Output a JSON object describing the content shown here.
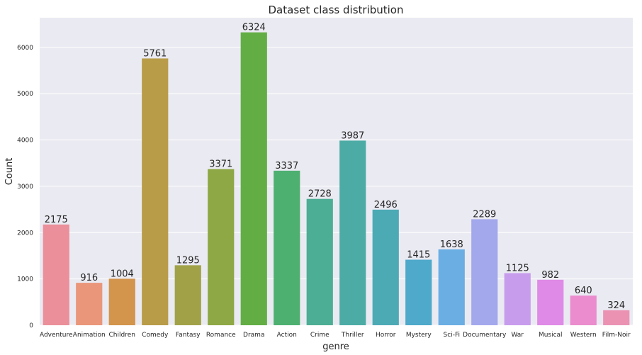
{
  "chart_data": {
    "type": "bar",
    "title": "Dataset class distribution",
    "xlabel": "genre",
    "ylabel": "Count",
    "ylim": [
      0,
      6640
    ],
    "yticks": [
      0,
      1000,
      2000,
      3000,
      4000,
      5000,
      6000
    ],
    "grid": true,
    "background_color": "#eaeaf2",
    "categories": [
      "Adventure",
      "Animation",
      "Children",
      "Comedy",
      "Fantasy",
      "Romance",
      "Drama",
      "Action",
      "Crime",
      "Thriller",
      "Horror",
      "Mystery",
      "Sci-Fi",
      "Documentary",
      "War",
      "Musical",
      "Western",
      "Film-Noir"
    ],
    "values": [
      2175,
      916,
      1004,
      5761,
      1295,
      3371,
      6324,
      3337,
      2728,
      3987,
      2496,
      1415,
      1638,
      2289,
      1125,
      982,
      640,
      324
    ],
    "colors": [
      "#eb8f9a",
      "#ea967a",
      "#d3944b",
      "#b89c48",
      "#a1a248",
      "#8ea845",
      "#62ae44",
      "#4db070",
      "#4cae94",
      "#4caca5",
      "#4caab5",
      "#4ea9ca",
      "#6aaee3",
      "#a3a8ec",
      "#c89ced",
      "#df8ae6",
      "#ea8ccd",
      "#eb92b3"
    ]
  }
}
